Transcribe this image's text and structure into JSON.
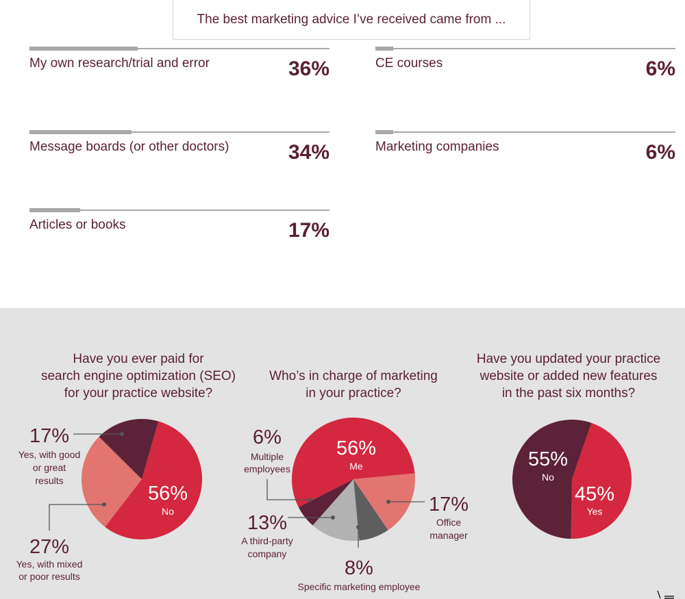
{
  "header": {
    "title": "The best marketing advice I’ve received came from ..."
  },
  "advice": [
    {
      "label": "My own research/trial and error",
      "value": "36%",
      "fraction": 0.36
    },
    {
      "label": "Message boards (or other doctors)",
      "value": "34%",
      "fraction": 0.34
    },
    {
      "label": "Articles or books",
      "value": "17%",
      "fraction": 0.17
    },
    {
      "label": "CE courses",
      "value": "6%",
      "fraction": 0.06
    },
    {
      "label": "Marketing companies",
      "value": "6%",
      "fraction": 0.06
    }
  ],
  "colors": {
    "maroon": "#5c2238",
    "red": "#d3283f",
    "salmon": "#e27570",
    "lightgray": "#b2b2b2",
    "darkgray": "#5e5e5e",
    "bar": "#a8a8a8",
    "text": "#5a1f33",
    "panel": "#e3e3e4"
  },
  "questions": {
    "seo": "Have you ever paid for\nsearch engine optimization (SEO)\nfor your practice website?",
    "who": "Who’s in charge of marketing\nin your practice?",
    "updated": "Have you updated your practice\nwebsite or added new features\nin the past six months?"
  },
  "chart_data": [
    {
      "type": "pie",
      "title": "Have you ever paid for search engine optimization (SEO) for your practice website?",
      "slices": [
        {
          "pct": "56%",
          "label": "No",
          "value": 56,
          "color": "#d3283f"
        },
        {
          "pct": "27%",
          "label": "Yes, with mixed or poor results",
          "value": 27,
          "color": "#e27570"
        },
        {
          "pct": "17%",
          "label": "Yes, with good or great results",
          "value": 17,
          "color": "#5c2238"
        }
      ]
    },
    {
      "type": "pie",
      "title": "Who’s in charge of marketing in your practice?",
      "slices": [
        {
          "pct": "56%",
          "label": "Me",
          "value": 56,
          "color": "#d3283f"
        },
        {
          "pct": "17%",
          "label": "Office manager",
          "value": 17,
          "color": "#e27570"
        },
        {
          "pct": "8%",
          "label": "Specific marketing employee",
          "value": 8,
          "color": "#5e5e5e"
        },
        {
          "pct": "13%",
          "label": "A third-party company",
          "value": 13,
          "color": "#b2b2b2"
        },
        {
          "pct": "6%",
          "label": "Multiple employees",
          "value": 6,
          "color": "#5c2238"
        }
      ]
    },
    {
      "type": "pie",
      "title": "Have you updated your practice website or added new features in the past six months?",
      "slices": [
        {
          "pct": "45%",
          "label": "Yes",
          "value": 45,
          "color": "#d3283f"
        },
        {
          "pct": "55%",
          "label": "No",
          "value": 55,
          "color": "#5c2238"
        }
      ]
    }
  ]
}
